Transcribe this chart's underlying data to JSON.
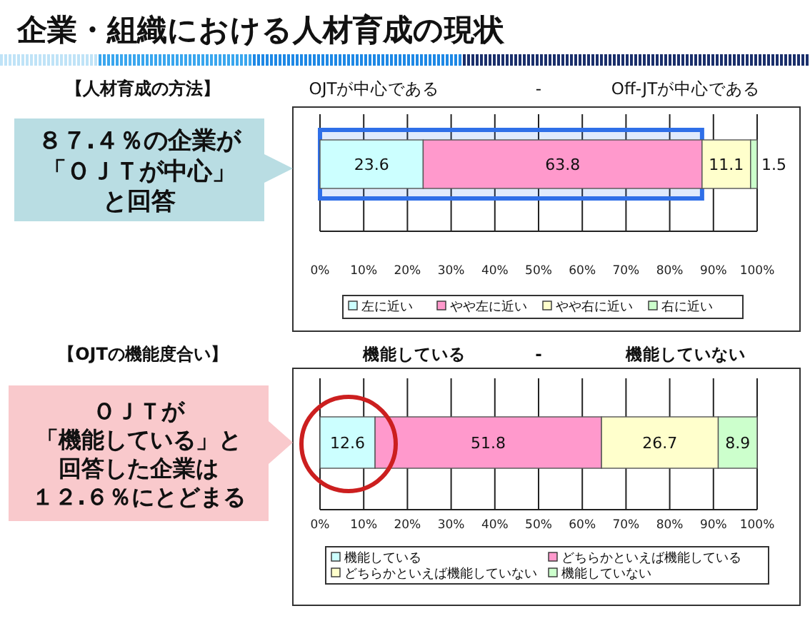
{
  "chart_data": [
    {
      "type": "bar",
      "orientation": "horizontal",
      "stacked": true,
      "title": "企業・組織における人材育成の現状",
      "subtitle": "【人材育成の方法】",
      "categories": [
        null
      ],
      "series": [
        {
          "name": "左に近い",
          "color": "#ccffff",
          "values": [
            23.6
          ]
        },
        {
          "name": "やや左に近い",
          "color": "#ff99cc",
          "values": [
            63.8
          ]
        },
        {
          "name": "やや右に近い",
          "color": "#ffffcc",
          "values": [
            11.1
          ]
        },
        {
          "name": "右に近い",
          "color": "#ccffcc",
          "values": [
            1.5
          ]
        }
      ],
      "xlim": [
        0,
        100
      ],
      "xticks": [
        {
          "value": 0,
          "label": "0%"
        },
        {
          "value": 10,
          "label": "10%"
        },
        {
          "value": 20,
          "label": "20%"
        },
        {
          "value": 30,
          "label": "30%"
        },
        {
          "value": 40,
          "label": "40%"
        },
        {
          "value": 50,
          "label": "50%"
        },
        {
          "value": 60,
          "label": "60%"
        },
        {
          "value": 70,
          "label": "70%"
        },
        {
          "value": 80,
          "label": "80%"
        },
        {
          "value": 90,
          "label": "90%"
        },
        {
          "value": 100,
          "label": "100%"
        }
      ],
      "grid": "x",
      "legend": "bottom",
      "data_labels": true,
      "bands": [
        {
          "axis": "x",
          "from": 0,
          "to": 87.4,
          "color": "#2f6fe8"
        }
      ],
      "annotations": [
        "８７.４％の企業が",
        "「ＯＪＴが中心」",
        "と回答",
        "OJTが中心である",
        "-",
        "Off-JTが中心である"
      ]
    },
    {
      "type": "bar",
      "orientation": "horizontal",
      "stacked": true,
      "title": "【OJTの機能度合い】",
      "categories": [
        null
      ],
      "series": [
        {
          "name": "機能している",
          "color": "#ccffff",
          "values": [
            12.6
          ]
        },
        {
          "name": "どちらかといえば機能している",
          "color": "#ff99cc",
          "values": [
            51.8
          ]
        },
        {
          "name": "どちらかといえば機能していない",
          "color": "#ffffcc",
          "values": [
            26.7
          ]
        },
        {
          "name": "機能していない",
          "color": "#ccffcc",
          "values": [
            8.9
          ]
        }
      ],
      "xlim": [
        0,
        100
      ],
      "xticks": [
        {
          "value": 0,
          "label": "0%"
        },
        {
          "value": 10,
          "label": "10%"
        },
        {
          "value": 20,
          "label": "20%"
        },
        {
          "value": 30,
          "label": "30%"
        },
        {
          "value": 40,
          "label": "40%"
        },
        {
          "value": 50,
          "label": "50%"
        },
        {
          "value": 60,
          "label": "60%"
        },
        {
          "value": 70,
          "label": "70%"
        },
        {
          "value": 80,
          "label": "80%"
        },
        {
          "value": 90,
          "label": "90%"
        },
        {
          "value": 100,
          "label": "100%"
        }
      ],
      "grid": "x",
      "legend": "bottom",
      "data_labels": true,
      "annotations": [
        "ＯＪＴが",
        "「機能している」と",
        "回答した企業は",
        "１２.６％にとどまる",
        "機能している",
        "-",
        "機能していない"
      ]
    }
  ]
}
